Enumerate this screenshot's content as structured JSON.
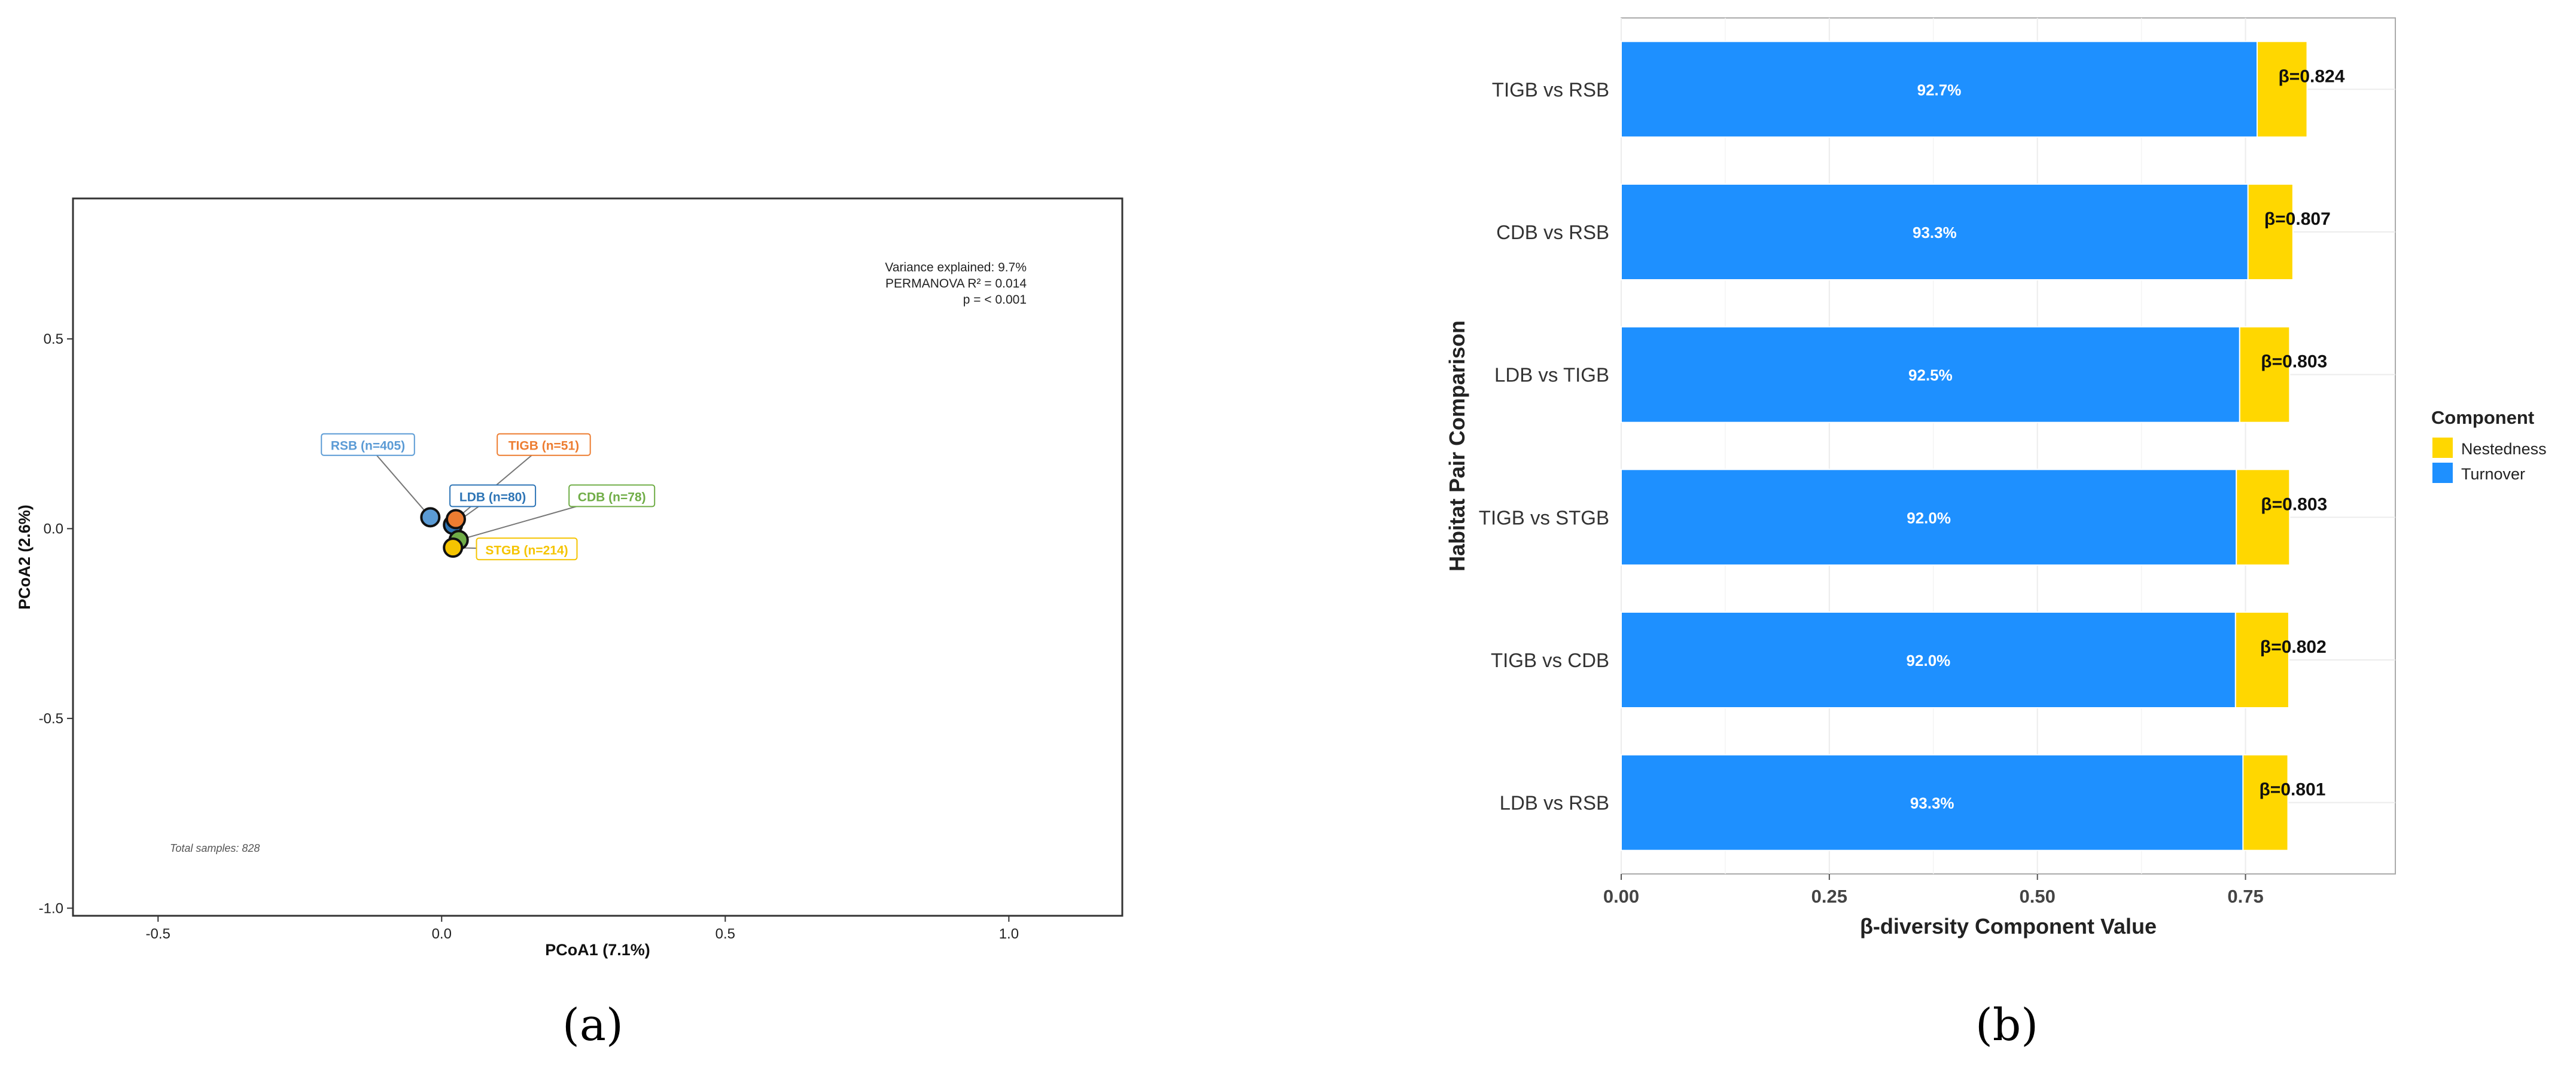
{
  "panel_a": {
    "caption": "(a)",
    "stats_text": [
      "Variance explained: 9.7%",
      "PERMANOVA R² = 0.014",
      "p = < 0.001"
    ],
    "footnote": "Total samples: 828"
  },
  "panel_b": {
    "caption": "(b)"
  },
  "chart_data": [
    {
      "type": "scatter",
      "xlabel": "PCoA1 (7.1%)",
      "ylabel": "PCoA2 (2.6%)",
      "xlim": [
        -0.65,
        1.2
      ],
      "ylim": [
        -1.02,
        0.87
      ],
      "x_ticks": [
        -0.5,
        0.0,
        0.5,
        1.0
      ],
      "x_tick_labels": [
        "-0.5",
        "0.0",
        "0.5",
        "1.0"
      ],
      "y_ticks": [
        -1.0,
        -0.5,
        0.0,
        0.5
      ],
      "y_tick_labels": [
        "-1.0",
        "-0.5",
        "0.0",
        "0.5"
      ],
      "grid": false,
      "points": [
        {
          "group": "RSB",
          "label": "RSB (n=405)",
          "x": -0.02,
          "y": 0.03,
          "color": "#5b9bd5",
          "label_x": -0.13,
          "label_y": 0.22
        },
        {
          "group": "LDB",
          "label": "LDB (n=80)",
          "x": 0.02,
          "y": 0.01,
          "color": "#2e75b6",
          "label_x": 0.09,
          "label_y": 0.085
        },
        {
          "group": "TIGB",
          "label": "TIGB (n=51)",
          "x": 0.025,
          "y": 0.025,
          "color": "#ed7d31",
          "label_x": 0.18,
          "label_y": 0.22
        },
        {
          "group": "CDB",
          "label": "CDB (n=78)",
          "x": 0.03,
          "y": -0.03,
          "color": "#70ad47",
          "label_x": 0.3,
          "label_y": 0.085
        },
        {
          "group": "STGB",
          "label": "STGB (n=214)",
          "x": 0.02,
          "y": -0.05,
          "color": "#f5c400",
          "label_x": 0.15,
          "label_y": -0.055
        }
      ]
    },
    {
      "type": "bar",
      "orientation": "horizontal",
      "stacked": true,
      "xlabel": "β-diversity Component Value",
      "ylabel": "Habitat Pair Comparison",
      "xlim": [
        0,
        0.93
      ],
      "x_ticks": [
        0.0,
        0.25,
        0.5,
        0.75
      ],
      "x_tick_labels": [
        "0.00",
        "0.25",
        "0.50",
        "0.75"
      ],
      "categories": [
        "TIGB vs RSB",
        "CDB vs RSB",
        "LDB vs TIGB",
        "TIGB vs STGB",
        "TIGB vs CDB",
        "LDB vs RSB"
      ],
      "series": [
        {
          "name": "Turnover",
          "color": "#1e90ff",
          "values": [
            0.764,
            0.753,
            0.743,
            0.739,
            0.738,
            0.747
          ]
        },
        {
          "name": "Nestedness",
          "color": "#ffd700",
          "values": [
            0.06,
            0.054,
            0.06,
            0.064,
            0.064,
            0.054
          ]
        }
      ],
      "percent_labels": [
        "92.7%",
        "93.3%",
        "92.5%",
        "92.0%",
        "92.0%",
        "93.3%"
      ],
      "beta_labels": [
        "β=0.824",
        "β=0.807",
        "β=0.803",
        "β=0.803",
        "β=0.802",
        "β=0.801"
      ],
      "legend": {
        "title": "Component",
        "position": "right",
        "entries": [
          "Nestedness",
          "Turnover"
        ]
      },
      "grid": true
    }
  ]
}
